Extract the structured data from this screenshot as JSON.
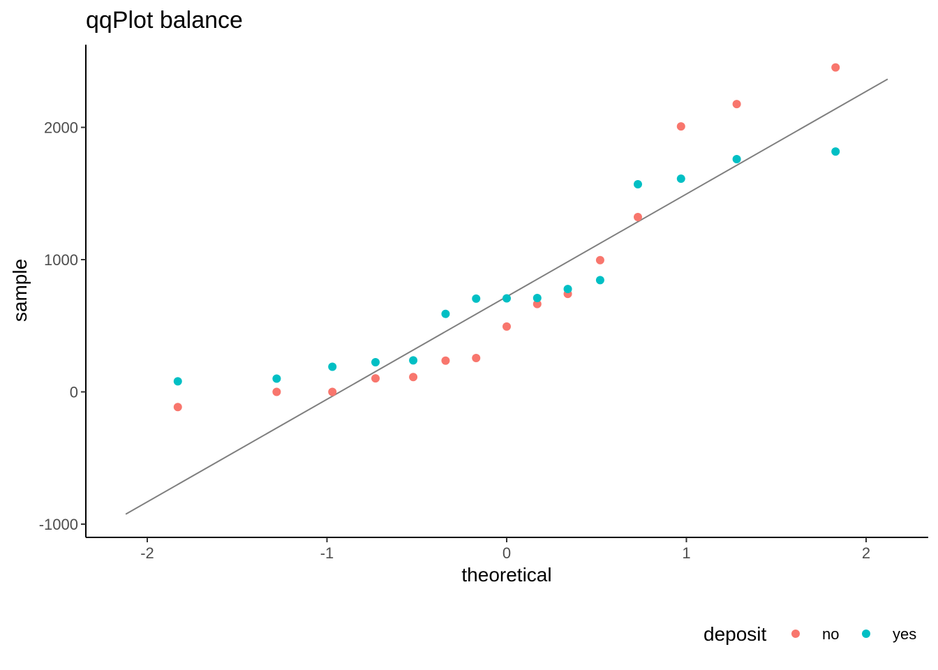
{
  "chart_data": {
    "type": "scatter",
    "title": "qqPlot balance",
    "xlabel": "theoretical",
    "ylabel": "sample",
    "xlim": [
      -2.35,
      2.35
    ],
    "ylim": [
      -1100,
      2600
    ],
    "xticks": [
      -2,
      -1,
      0,
      1,
      2
    ],
    "xtick_labels": [
      "-2",
      "-1",
      "0",
      "1",
      "2"
    ],
    "yticks": [
      -1000,
      0,
      1000,
      2000
    ],
    "ytick_labels": [
      "-1000",
      "0",
      "1000",
      "2000"
    ],
    "grid": false,
    "legend": {
      "title": "deposit",
      "position": "bottom-right"
    },
    "reference_line": {
      "x": [
        -2.12,
        2.12
      ],
      "y": [
        -925,
        2365
      ],
      "color": "#7f7f7f"
    },
    "series": [
      {
        "name": "no",
        "color": "#F8766D",
        "points": [
          [
            -1.83,
            -115
          ],
          [
            -1.28,
            0
          ],
          [
            -0.97,
            0
          ],
          [
            -0.73,
            102
          ],
          [
            -0.52,
            112
          ],
          [
            -0.34,
            236
          ],
          [
            -0.17,
            256
          ],
          [
            0.0,
            494
          ],
          [
            0.17,
            664
          ],
          [
            0.34,
            741
          ],
          [
            0.52,
            996
          ],
          [
            0.73,
            1322
          ],
          [
            0.97,
            2007
          ],
          [
            1.28,
            2176
          ],
          [
            1.83,
            2453
          ]
        ]
      },
      {
        "name": "yes",
        "color": "#00BFC4",
        "points": [
          [
            -1.83,
            80
          ],
          [
            -1.28,
            100
          ],
          [
            -0.97,
            190
          ],
          [
            -0.73,
            224
          ],
          [
            -0.52,
            238
          ],
          [
            -0.34,
            590
          ],
          [
            -0.17,
            705
          ],
          [
            0.0,
            707
          ],
          [
            0.17,
            710
          ],
          [
            0.34,
            778
          ],
          [
            0.52,
            845
          ],
          [
            0.73,
            1570
          ],
          [
            0.97,
            1612
          ],
          [
            1.28,
            1760
          ],
          [
            1.83,
            1817
          ]
        ]
      }
    ]
  }
}
